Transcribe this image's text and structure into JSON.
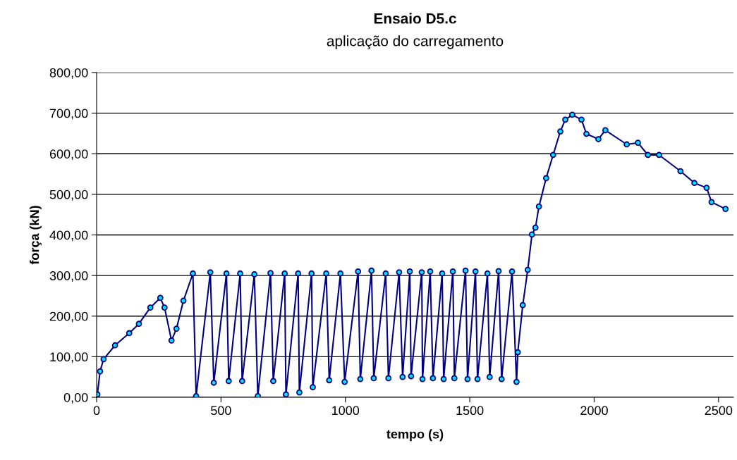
{
  "chart_data": {
    "type": "line",
    "title": "Ensaio D5.c",
    "subtitle": "aplicação do carregamento",
    "xlabel": "tempo (s)",
    "ylabel": "força (kN)",
    "series": [
      {
        "color": "#000080",
        "x": [
          0,
          3,
          14,
          28,
          74,
          131,
          170,
          216,
          256,
          273,
          301,
          321,
          349,
          387,
          400,
          457,
          471,
          522,
          531,
          577,
          585,
          634,
          648,
          699,
          710,
          756,
          761,
          810,
          815,
          864,
          869,
          923,
          935,
          980,
          997,
          1051,
          1060,
          1105,
          1114,
          1162,
          1173,
          1216,
          1230,
          1259,
          1264,
          1307,
          1310,
          1341,
          1352,
          1389,
          1395,
          1432,
          1438,
          1483,
          1491,
          1523,
          1531,
          1571,
          1580,
          1616,
          1628,
          1670,
          1688,
          1693,
          1713,
          1733,
          1750,
          1764,
          1778,
          1807,
          1835,
          1864,
          1884,
          1912,
          1949,
          1969,
          2017,
          2045,
          2131,
          2176,
          2216,
          2261,
          2347,
          2403,
          2452,
          2472,
          2528
        ],
        "values": [
          3,
          7,
          64,
          94,
          128,
          158,
          181,
          221,
          245,
          221,
          140,
          169,
          238,
          305,
          3,
          308,
          36,
          305,
          40,
          305,
          40,
          303,
          3,
          306,
          40,
          305,
          7,
          305,
          12,
          305,
          25,
          305,
          42,
          305,
          38,
          310,
          45,
          312,
          47,
          305,
          47,
          308,
          50,
          310,
          52,
          308,
          45,
          310,
          47,
          305,
          45,
          310,
          47,
          312,
          45,
          310,
          45,
          305,
          50,
          311,
          45,
          310,
          38,
          111,
          227,
          314,
          401,
          418,
          470,
          540,
          597,
          655,
          684,
          696,
          684,
          649,
          636,
          658,
          623,
          627,
          597,
          597,
          557,
          528,
          516,
          481,
          464
        ]
      }
    ],
    "xlim": [
      0,
      2560
    ],
    "xticks": [
      0,
      500,
      1000,
      1500,
      2000,
      2500
    ],
    "ylim": [
      0,
      800
    ],
    "yticks": [
      {
        "value": 0,
        "label": "0,00"
      },
      {
        "value": 100,
        "label": "100,00"
      },
      {
        "value": 200,
        "label": "200,00"
      },
      {
        "value": 300,
        "label": "300,00"
      },
      {
        "value": 400,
        "label": "400,00"
      },
      {
        "value": 500,
        "label": "500,00"
      },
      {
        "value": 600,
        "label": "600,00"
      },
      {
        "value": 700,
        "label": "700,00"
      },
      {
        "value": 800,
        "label": "800,00"
      }
    ],
    "grid": "y",
    "marker": "circle",
    "line_style": "solid"
  }
}
